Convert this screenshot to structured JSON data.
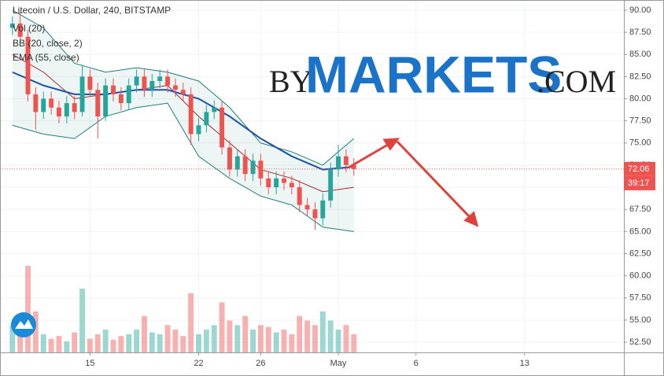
{
  "chart_data": {
    "type": "candlestick",
    "title": "Litecoin / U.S. Dollar, 240, BITSTAMP",
    "indicators": [
      "Vol (20)",
      "BB (20, close, 2)",
      "EMA (55, close)"
    ],
    "watermark": {
      "by": "BY",
      "markets": "MARKETS",
      "com": ".COM"
    },
    "countdown": "39:17",
    "current_price": 72.06,
    "x": [
      10,
      10.5,
      11,
      11.5,
      12,
      12.5,
      13,
      13.5,
      14,
      14.5,
      15,
      15.5,
      16,
      16.5,
      17,
      17.5,
      18,
      18.5,
      19,
      19.5,
      20,
      20.5,
      21,
      21.5,
      22,
      22.5,
      23,
      23.5,
      24,
      24.5,
      25,
      25.5,
      26,
      26.5,
      27,
      27.5,
      28,
      28.5,
      29,
      29.5,
      30,
      30.5,
      31,
      31.5,
      32
    ],
    "open": [
      88,
      88.5,
      87,
      80.5,
      78.5,
      80,
      79,
      78,
      79.5,
      78.5,
      82.5,
      81,
      78,
      81.5,
      80.5,
      79.5,
      81.5,
      82.5,
      81,
      82,
      82.5,
      81.5,
      81,
      80.5,
      76,
      77,
      78.5,
      79,
      74.5,
      72,
      73.5,
      71.5,
      73,
      71,
      70,
      71,
      70.5,
      70,
      68,
      67.5,
      66.5,
      68.5,
      72,
      73.5,
      72.5
    ],
    "high": [
      89.3,
      89.8,
      87.8,
      81.3,
      80.8,
      80.8,
      79.8,
      80.3,
      80.3,
      83.8,
      83.3,
      81.8,
      82.3,
      82.3,
      81.3,
      82.3,
      83.3,
      83.3,
      82.8,
      83.3,
      83.3,
      82.3,
      81.8,
      81.3,
      77.8,
      79.3,
      79.8,
      79.8,
      75.3,
      74.3,
      74.3,
      73.8,
      73.8,
      71.8,
      71.8,
      71.8,
      71.3,
      70.8,
      68.8,
      68.3,
      69.3,
      72.8,
      74.8,
      74.3,
      73.3
    ],
    "low": [
      87.2,
      86.2,
      79.7,
      76.5,
      77.7,
      78.2,
      77.2,
      77.2,
      77.7,
      78,
      80.2,
      75.5,
      77.5,
      79.7,
      78.7,
      78.7,
      80.7,
      80.2,
      80.2,
      81.2,
      80.7,
      80.2,
      79.7,
      74.8,
      75.2,
      76.2,
      77.7,
      73.7,
      71.2,
      71.2,
      70.7,
      70.7,
      70.2,
      69.2,
      69.2,
      69.7,
      69.2,
      67.2,
      66.7,
      65.2,
      65.7,
      67.7,
      71.2,
      71.7,
      71.3
    ],
    "close": [
      88.5,
      87,
      80.5,
      78.5,
      80,
      79,
      78,
      79.5,
      78.5,
      82.5,
      81,
      78,
      81.5,
      80.5,
      79.5,
      81.5,
      82.5,
      81,
      82,
      82.5,
      81.5,
      81,
      80.5,
      76,
      77,
      78.5,
      79,
      74.5,
      72,
      73.5,
      71.5,
      73,
      71,
      70,
      71,
      70.5,
      70,
      68,
      67.5,
      66.5,
      68.5,
      72,
      73.5,
      72.5,
      72.06
    ],
    "volume": [
      30,
      25,
      95,
      45,
      20,
      15,
      18,
      12,
      22,
      70,
      15,
      20,
      25,
      14,
      18,
      20,
      25,
      40,
      22,
      20,
      30,
      25,
      18,
      65,
      20,
      25,
      30,
      55,
      35,
      30,
      40,
      25,
      30,
      28,
      22,
      25,
      20,
      40,
      35,
      30,
      45,
      35,
      25,
      30,
      20
    ],
    "bands_x": [
      10,
      12,
      14,
      16,
      18,
      20,
      22,
      24,
      26,
      28,
      30,
      32
    ],
    "bb_upper": [
      90,
      88,
      84,
      83,
      83.5,
      83,
      82,
      79,
      75,
      74,
      72.5,
      75.5
    ],
    "bb_mid": [
      85,
      83,
      80,
      80.5,
      81,
      81.5,
      78,
      75,
      72,
      71,
      69.5,
      70
    ],
    "bb_lower": [
      77,
      76,
      75.5,
      78,
      79,
      79.5,
      73.5,
      71,
      69,
      68,
      65.5,
      65
    ],
    "ema": [
      83,
      81.5,
      80.5,
      80.5,
      81,
      81,
      80,
      78,
      75.5,
      73.5,
      72,
      72.3
    ],
    "up_color": "#26a69a",
    "down_color": "#ef5350",
    "ema_color": "#1e53a5",
    "bb_color": "#1f7d7a",
    "bb_mid_color": "#a32a2a",
    "grid": true,
    "xlim": [
      9.2,
      49.4
    ],
    "ylim": [
      51.35,
      91.15
    ],
    "xticks": [
      15,
      22,
      26,
      {
        "value": 31,
        "label": "May"
      },
      {
        "value": 36,
        "label": "6"
      },
      {
        "value": 43,
        "label": "13"
      }
    ],
    "yticks": [
      {
        "value": 52.5,
        "label": "52.50"
      },
      {
        "value": 55,
        "label": "55.00"
      },
      {
        "value": 57.5,
        "label": "57.50"
      },
      {
        "value": 60,
        "label": "60.00"
      },
      {
        "value": 62.5,
        "label": "62.50"
      },
      {
        "value": 65,
        "label": "65.00"
      },
      {
        "value": 67.5,
        "label": "67.50"
      },
      {
        "value": 70,
        "label": "70.00"
      },
      {
        "value": 72.5,
        "label": "72.50"
      },
      {
        "value": 75,
        "label": "75.00"
      },
      {
        "value": 77.5,
        "label": "77.50"
      },
      {
        "value": 80,
        "label": "80.00"
      },
      {
        "value": 82.5,
        "label": "82.50"
      },
      {
        "value": 85,
        "label": "85.00"
      },
      {
        "value": 87.5,
        "label": "87.50"
      },
      {
        "value": 90,
        "label": "90.00"
      }
    ]
  }
}
